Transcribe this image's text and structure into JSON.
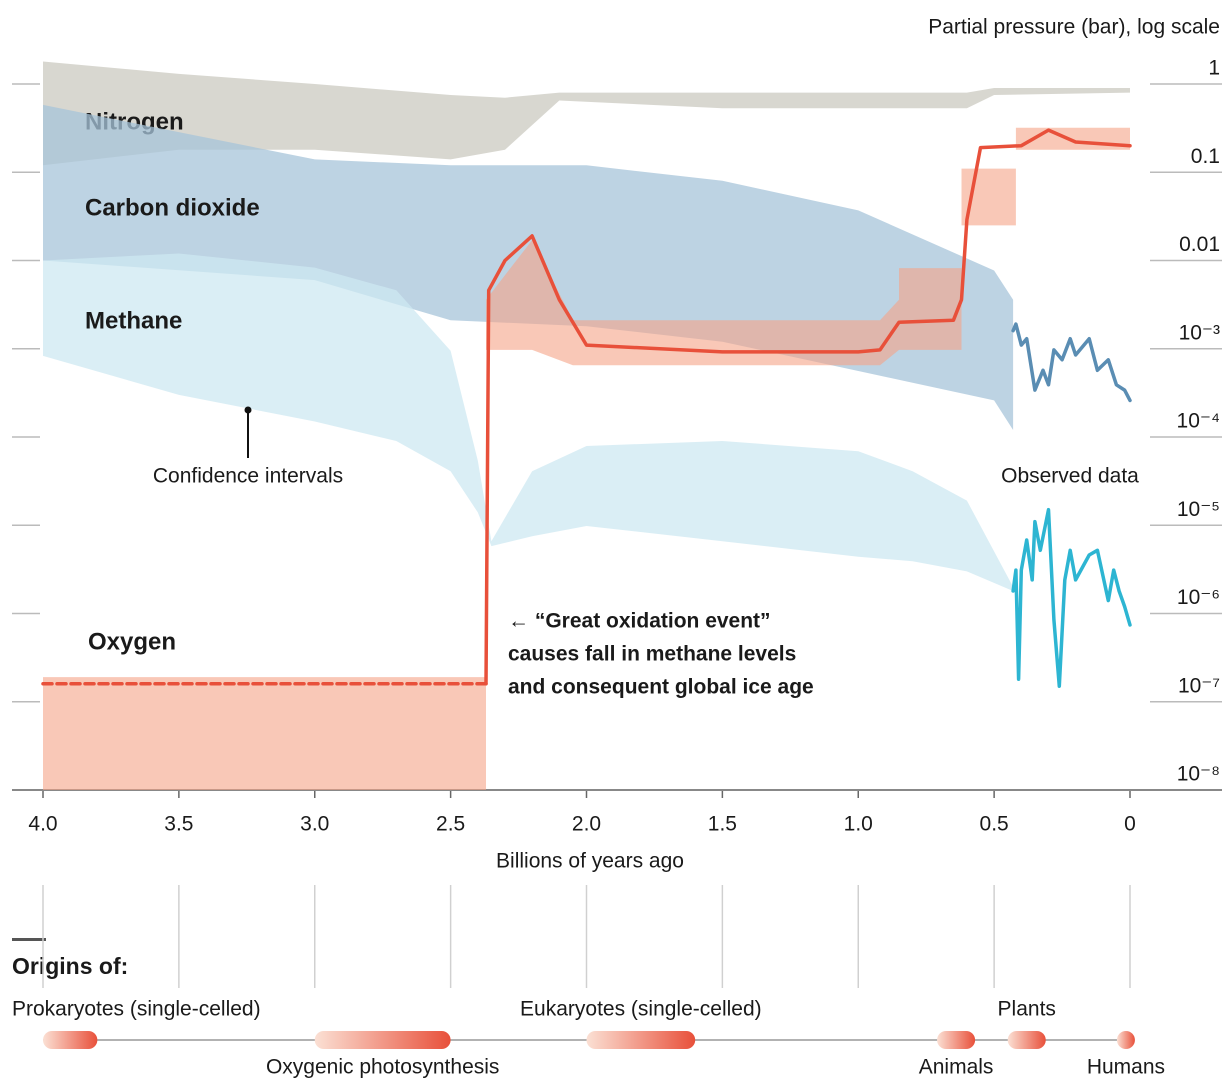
{
  "chart_data": {
    "type": "band",
    "y_label": "Partial pressure (bar), log scale",
    "x_label": "Billions of years ago",
    "log_y": true,
    "xlim": [
      4,
      0
    ],
    "ylim": [
      1e-08,
      1
    ],
    "xticks": [
      {
        "value": 4,
        "label": "4.0"
      },
      3.5,
      {
        "value": 3,
        "label": "3.0"
      },
      2.5,
      {
        "value": 2,
        "label": "2.0"
      },
      1.5,
      {
        "value": 1,
        "label": "1.0"
      },
      0.5,
      0
    ],
    "yticks": [
      1,
      0.1,
      0.01,
      {
        "value": 0.001,
        "label": "10⁻³"
      },
      {
        "value": 0.0001,
        "label": "10⁻⁴"
      },
      {
        "value": 1e-05,
        "label": "10⁻⁵"
      },
      {
        "value": 1e-06,
        "label": "10⁻⁶"
      },
      {
        "value": 1e-07,
        "label": "10⁻⁷"
      },
      {
        "value": 1e-08,
        "label": "10⁻⁸"
      }
    ],
    "series": [
      {
        "name": "Nitrogen",
        "type": "band",
        "color": "#cbc9c0",
        "label_color": "#9c9b93",
        "x": [
          4.0,
          3.5,
          3.0,
          2.5,
          2.3,
          2.1,
          1.5,
          1.0,
          0.6,
          0.5,
          0
        ],
        "upper": [
          1.8,
          1.3,
          1,
          0.75,
          0.7,
          0.8,
          0.8,
          0.8,
          0.8,
          0.9,
          0.9
        ],
        "lower": [
          0.12,
          0.18,
          0.18,
          0.14,
          0.18,
          0.65,
          0.53,
          0.53,
          0.53,
          0.75,
          0.8
        ]
      },
      {
        "name": "Carbon dioxide",
        "type": "band",
        "color": "#a7c4da",
        "label_color": "#5c9bc6",
        "x": [
          4.0,
          3.0,
          2.5,
          2.0,
          1.5,
          1.0,
          0.5,
          0.43
        ],
        "upper": [
          0.58,
          0.14,
          0.12,
          0.12,
          0.08,
          0.037,
          0.0077,
          0.0036
        ],
        "lower": [
          0.01,
          0.006,
          0.0021,
          0.0018,
          0.0012,
          0.00056,
          0.00026,
          0.00012
        ]
      },
      {
        "name": "Methane",
        "type": "band",
        "color": "#cde8f2",
        "label_color": "#36b5d6",
        "x": [
          4.0,
          3.5,
          3.0,
          2.7,
          2.5,
          2.4,
          2.35,
          2.2,
          2.0,
          1.5,
          1.0,
          0.8,
          0.6,
          0.43
        ],
        "upper": [
          0.01,
          0.012,
          0.0083,
          0.0046,
          0.00095,
          5.4e-05,
          6.6e-06,
          4.1e-05,
          7.9e-05,
          9e-05,
          6.9e-05,
          4.1e-05,
          1.9e-05,
          2e-06
        ],
        "lower": [
          0.00083,
          0.0003,
          0.00015,
          9e-05,
          4.1e-05,
          1.4e-05,
          5.8e-06,
          7.5e-06,
          9.8e-06,
          6.6e-06,
          4.4e-06,
          3.9e-06,
          3e-06,
          1.8e-06
        ]
      },
      {
        "name": "Oxygen",
        "type": "band",
        "color": "#f5a487",
        "label_color": "#e5502f",
        "x": [
          4.0,
          2.37,
          2.37,
          2.2,
          2.05,
          0.92,
          0.85,
          0.85,
          0.62,
          0.62,
          0.42,
          0.42,
          0
        ],
        "upper": [
          1.9e-07,
          1.9e-07,
          0.0036,
          0.017,
          0.0021,
          0.0021,
          0.0036,
          0.0082,
          0.0082,
          0.11,
          0.11,
          0.32,
          0.32
        ],
        "lower": [
          1e-08,
          1e-08,
          0.00097,
          0.00097,
          0.00065,
          0.00065,
          0.00097,
          0.00097,
          0.00097,
          0.025,
          0.025,
          0.18,
          0.18
        ]
      },
      {
        "type": "line",
        "color": "#e8503a",
        "dashed": true,
        "x": [
          4.0,
          2.37
        ],
        "values": [
          1.6e-07,
          1.6e-07
        ]
      },
      {
        "type": "line",
        "color": "#e8503a",
        "x": [
          2.37,
          2.36,
          2.3,
          2.2,
          2.1,
          2.0,
          1.5,
          1.0,
          0.92,
          0.85,
          0.65,
          0.62,
          0.6,
          0.55,
          0.4,
          0.3,
          0.2,
          0
        ],
        "values": [
          1.6e-07,
          0.0046,
          0.01,
          0.019,
          0.0036,
          0.0011,
          0.00092,
          0.00092,
          0.00097,
          0.002,
          0.0021,
          0.0036,
          0.029,
          0.19,
          0.2,
          0.3,
          0.22,
          0.2
        ]
      },
      {
        "type": "line",
        "color": "#5a8db3",
        "x": [
          0.43,
          0.42,
          0.4,
          0.38,
          0.35,
          0.32,
          0.3,
          0.28,
          0.25,
          0.22,
          0.2,
          0.15,
          0.12,
          0.08,
          0.05,
          0.02,
          0
        ],
        "values": [
          0.0016,
          0.0019,
          0.0011,
          0.0013,
          0.00034,
          0.00057,
          0.00039,
          0.00097,
          0.00075,
          0.0013,
          0.00085,
          0.0013,
          0.00057,
          0.00075,
          0.00039,
          0.00034,
          0.00026
        ]
      },
      {
        "type": "line",
        "color": "#2db5d2",
        "x": [
          0.43,
          0.42,
          0.41,
          0.4,
          0.38,
          0.36,
          0.35,
          0.33,
          0.3,
          0.28,
          0.26,
          0.24,
          0.22,
          0.2,
          0.15,
          0.12,
          0.08,
          0.06,
          0.04,
          0.02,
          0
        ],
        "values": [
          1.8e-06,
          3.1e-06,
          1.8e-07,
          3.1e-06,
          6.8e-06,
          2.4e-06,
          1.1e-05,
          5.2e-06,
          1.5e-05,
          8.5e-07,
          1.5e-07,
          2.4e-06,
          5.2e-06,
          2.4e-06,
          4.6e-06,
          5.2e-06,
          1.4e-06,
          3.1e-06,
          1.8e-06,
          1.2e-06,
          7.4e-07
        ]
      }
    ],
    "annotations": [
      {
        "text": "Confidence intervals"
      },
      {
        "text": "Observed data"
      }
    ],
    "callout": {
      "lines": [
        "← “Great oxidation event”",
        "causes fall in methane levels",
        "and consequent global ice age"
      ]
    },
    "origins": {
      "title": "Origins of:",
      "items": [
        {
          "label": "Prokaryotes (single-celled)",
          "start": 4.0,
          "end": 3.8,
          "label_position": "above"
        },
        {
          "label": "Oxygenic photosynthesis",
          "start": 3.0,
          "end": 2.5,
          "label_position": "below"
        },
        {
          "label": "Eukaryotes (single-celled)",
          "start": 2.0,
          "end": 1.6,
          "label_position": "above"
        },
        {
          "label": "Animals",
          "start": 0.71,
          "end": 0.57,
          "label_position": "below"
        },
        {
          "label": "Plants",
          "start": 0.45,
          "end": 0.31,
          "label_position": "above"
        },
        {
          "label": "Humans",
          "start": 0.03,
          "end": 0,
          "label_position": "below"
        }
      ]
    }
  }
}
